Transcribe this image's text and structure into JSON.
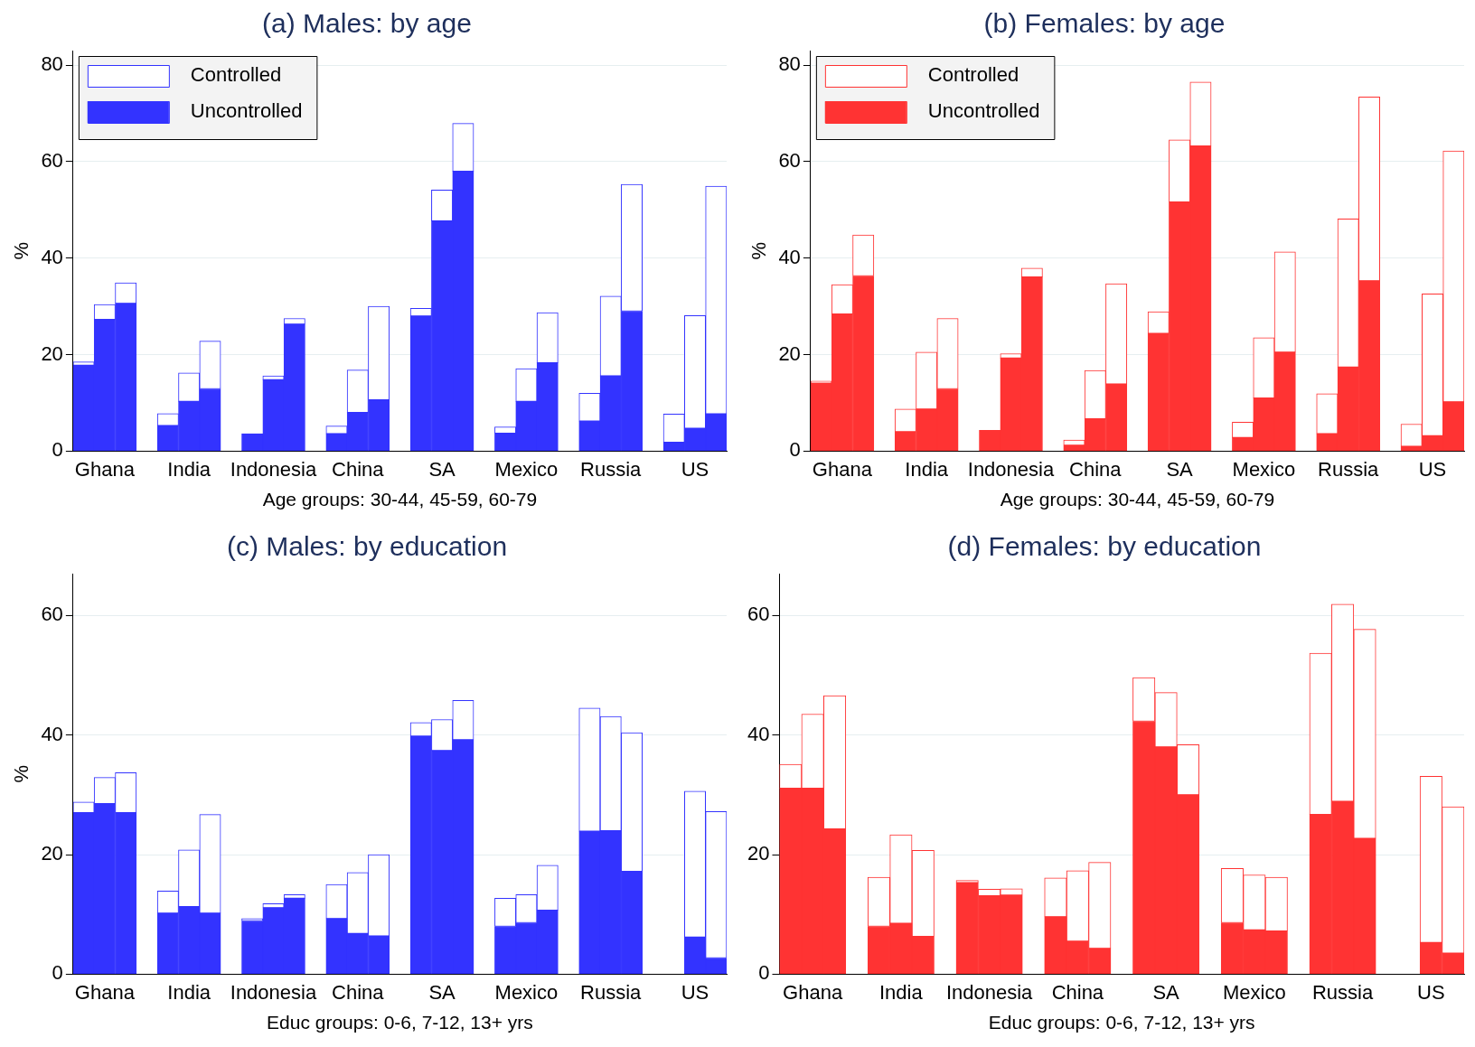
{
  "chart_data": [
    {
      "type": "bar",
      "title": "(a) Males: by age",
      "xlabel": "Age groups: 30-44, 45-59, 60-79",
      "ylabel": "%",
      "categories": [
        null,
        "Ghana",
        null,
        null,
        null,
        "India",
        null,
        null,
        null,
        "Indonesia",
        null,
        null,
        null,
        "China",
        null,
        null,
        null,
        "SA",
        null,
        null,
        null,
        "Mexico",
        null,
        null,
        null,
        "Russia",
        null,
        null,
        null,
        "US",
        null
      ],
      "stacked": true,
      "ylim": [
        0,
        83
      ],
      "yticks": [
        0,
        20,
        40,
        60,
        80
      ],
      "grid": "y",
      "legend": "top left",
      "series": [
        {
          "name": "Uncontrolled",
          "color": "#3333ff",
          "values": [
            17.8,
            27.3,
            30.6,
            null,
            5.3,
            10.3,
            12.9,
            null,
            3.6,
            14.8,
            26.3,
            null,
            3.6,
            8.0,
            10.6,
            null,
            28.0,
            47.7,
            58.0,
            null,
            3.7,
            10.3,
            18.3,
            null,
            6.2,
            15.6,
            29.0,
            null,
            1.8,
            4.7,
            7.7
          ]
        },
        {
          "name": "Controlled",
          "color": "#ffffff",
          "values": [
            0.7,
            3.1,
            4.3,
            null,
            2.5,
            5.9,
            9.9,
            null,
            null,
            0.8,
            1.2,
            null,
            1.6,
            8.8,
            19.4,
            null,
            1.6,
            6.4,
            9.9,
            null,
            1.3,
            6.8,
            10.4,
            null,
            5.8,
            16.5,
            26.3,
            null,
            5.9,
            23.4,
            47.2
          ]
        }
      ]
    },
    {
      "type": "bar",
      "title": "(b) Females: by age",
      "xlabel": "Age groups: 30-44, 45-59, 60-79",
      "ylabel": "%",
      "categories": [
        null,
        "Ghana",
        null,
        null,
        null,
        "India",
        null,
        null,
        null,
        "Indonesia",
        null,
        null,
        null,
        "China",
        null,
        null,
        null,
        "SA",
        null,
        null,
        null,
        "Mexico",
        null,
        null,
        null,
        "Russia",
        null,
        null,
        null,
        "US",
        null
      ],
      "stacked": true,
      "ylim": [
        0,
        83
      ],
      "yticks": [
        0,
        20,
        40,
        60,
        80
      ],
      "grid": "y",
      "legend": "top left",
      "series": [
        {
          "name": "Uncontrolled",
          "color": "#ff3333",
          "values": [
            14.1,
            28.4,
            36.3,
            null,
            4.0,
            8.7,
            12.9,
            null,
            4.3,
            19.3,
            36.1,
            null,
            1.2,
            6.7,
            13.9,
            null,
            24.4,
            51.6,
            63.2,
            null,
            2.8,
            11.0,
            20.5,
            null,
            3.6,
            17.4,
            35.3,
            null,
            1.0,
            3.2,
            10.2
          ]
        },
        {
          "name": "Controlled",
          "color": "#ffffff",
          "values": [
            0.4,
            6.1,
            8.5,
            null,
            4.7,
            11.8,
            14.6,
            null,
            null,
            0.9,
            1.8,
            null,
            1.1,
            10.0,
            20.8,
            null,
            4.5,
            12.9,
            13.3,
            null,
            3.2,
            12.5,
            20.8,
            null,
            8.3,
            30.7,
            38.1,
            null,
            4.6,
            29.4,
            52.0
          ]
        }
      ]
    },
    {
      "type": "bar",
      "title": "(c) Males: by education",
      "xlabel": "Educ groups: 0-6, 7-12, 13+ yrs",
      "ylabel": "%",
      "categories": [
        null,
        "Ghana",
        null,
        null,
        null,
        "India",
        null,
        null,
        null,
        "Indonesia",
        null,
        null,
        null,
        "China",
        null,
        null,
        null,
        "SA",
        null,
        null,
        null,
        "Mexico",
        null,
        null,
        null,
        "Russia",
        null,
        null,
        null,
        "US",
        null
      ],
      "stacked": true,
      "ylim": [
        0,
        67
      ],
      "yticks": [
        0,
        20,
        40,
        60
      ],
      "grid": "y",
      "series": [
        {
          "color": "#3333ff",
          "values": [
            27.0,
            28.5,
            27.0,
            null,
            10.2,
            11.3,
            10.2,
            null,
            8.9,
            11.1,
            12.7,
            null,
            9.3,
            6.8,
            6.4,
            null,
            39.8,
            37.4,
            39.2,
            null,
            8.0,
            8.6,
            10.7,
            null,
            23.9,
            24.0,
            17.2,
            null,
            null,
            6.2,
            2.7
          ]
        },
        {
          "color": "#ffffff",
          "values": [
            1.8,
            4.4,
            6.7,
            null,
            3.7,
            9.5,
            16.5,
            null,
            0.4,
            0.7,
            0.6,
            null,
            5.7,
            10.2,
            13.6,
            null,
            2.3,
            5.2,
            6.6,
            null,
            4.7,
            4.7,
            7.5,
            null,
            20.6,
            19.1,
            23.2,
            null,
            null,
            24.4,
            24.5
          ]
        }
      ]
    },
    {
      "type": "bar",
      "title": "(d) Females: by education",
      "xlabel": "Educ groups: 0-6, 7-12, 13+ yrs",
      "categories": [
        null,
        "Ghana",
        null,
        null,
        null,
        "India",
        null,
        null,
        null,
        "Indonesia",
        null,
        null,
        null,
        "China",
        null,
        null,
        null,
        "SA",
        null,
        null,
        null,
        "Mexico",
        null,
        null,
        null,
        "Russia",
        null,
        null,
        null,
        "US",
        null
      ],
      "stacked": true,
      "ylim": [
        0,
        67
      ],
      "yticks": [
        0,
        20,
        40,
        60
      ],
      "grid": "y",
      "series": [
        {
          "color": "#ff3333",
          "values": [
            31.1,
            31.1,
            24.3,
            null,
            8.0,
            8.5,
            6.3,
            null,
            15.3,
            13.1,
            13.2,
            null,
            9.6,
            5.5,
            4.3,
            null,
            42.3,
            38.0,
            30.0,
            null,
            8.6,
            7.4,
            7.2,
            null,
            26.7,
            28.9,
            22.7,
            null,
            null,
            5.3,
            3.5
          ]
        },
        {
          "color": "#ffffff",
          "values": [
            4.0,
            12.4,
            22.3,
            null,
            8.2,
            14.8,
            14.4,
            null,
            0.4,
            1.1,
            1.1,
            null,
            6.5,
            11.8,
            14.4,
            null,
            7.3,
            9.1,
            8.4,
            null,
            9.1,
            9.2,
            9.0,
            null,
            27.0,
            33.0,
            35.0,
            null,
            null,
            27.8,
            24.5
          ]
        }
      ]
    }
  ]
}
